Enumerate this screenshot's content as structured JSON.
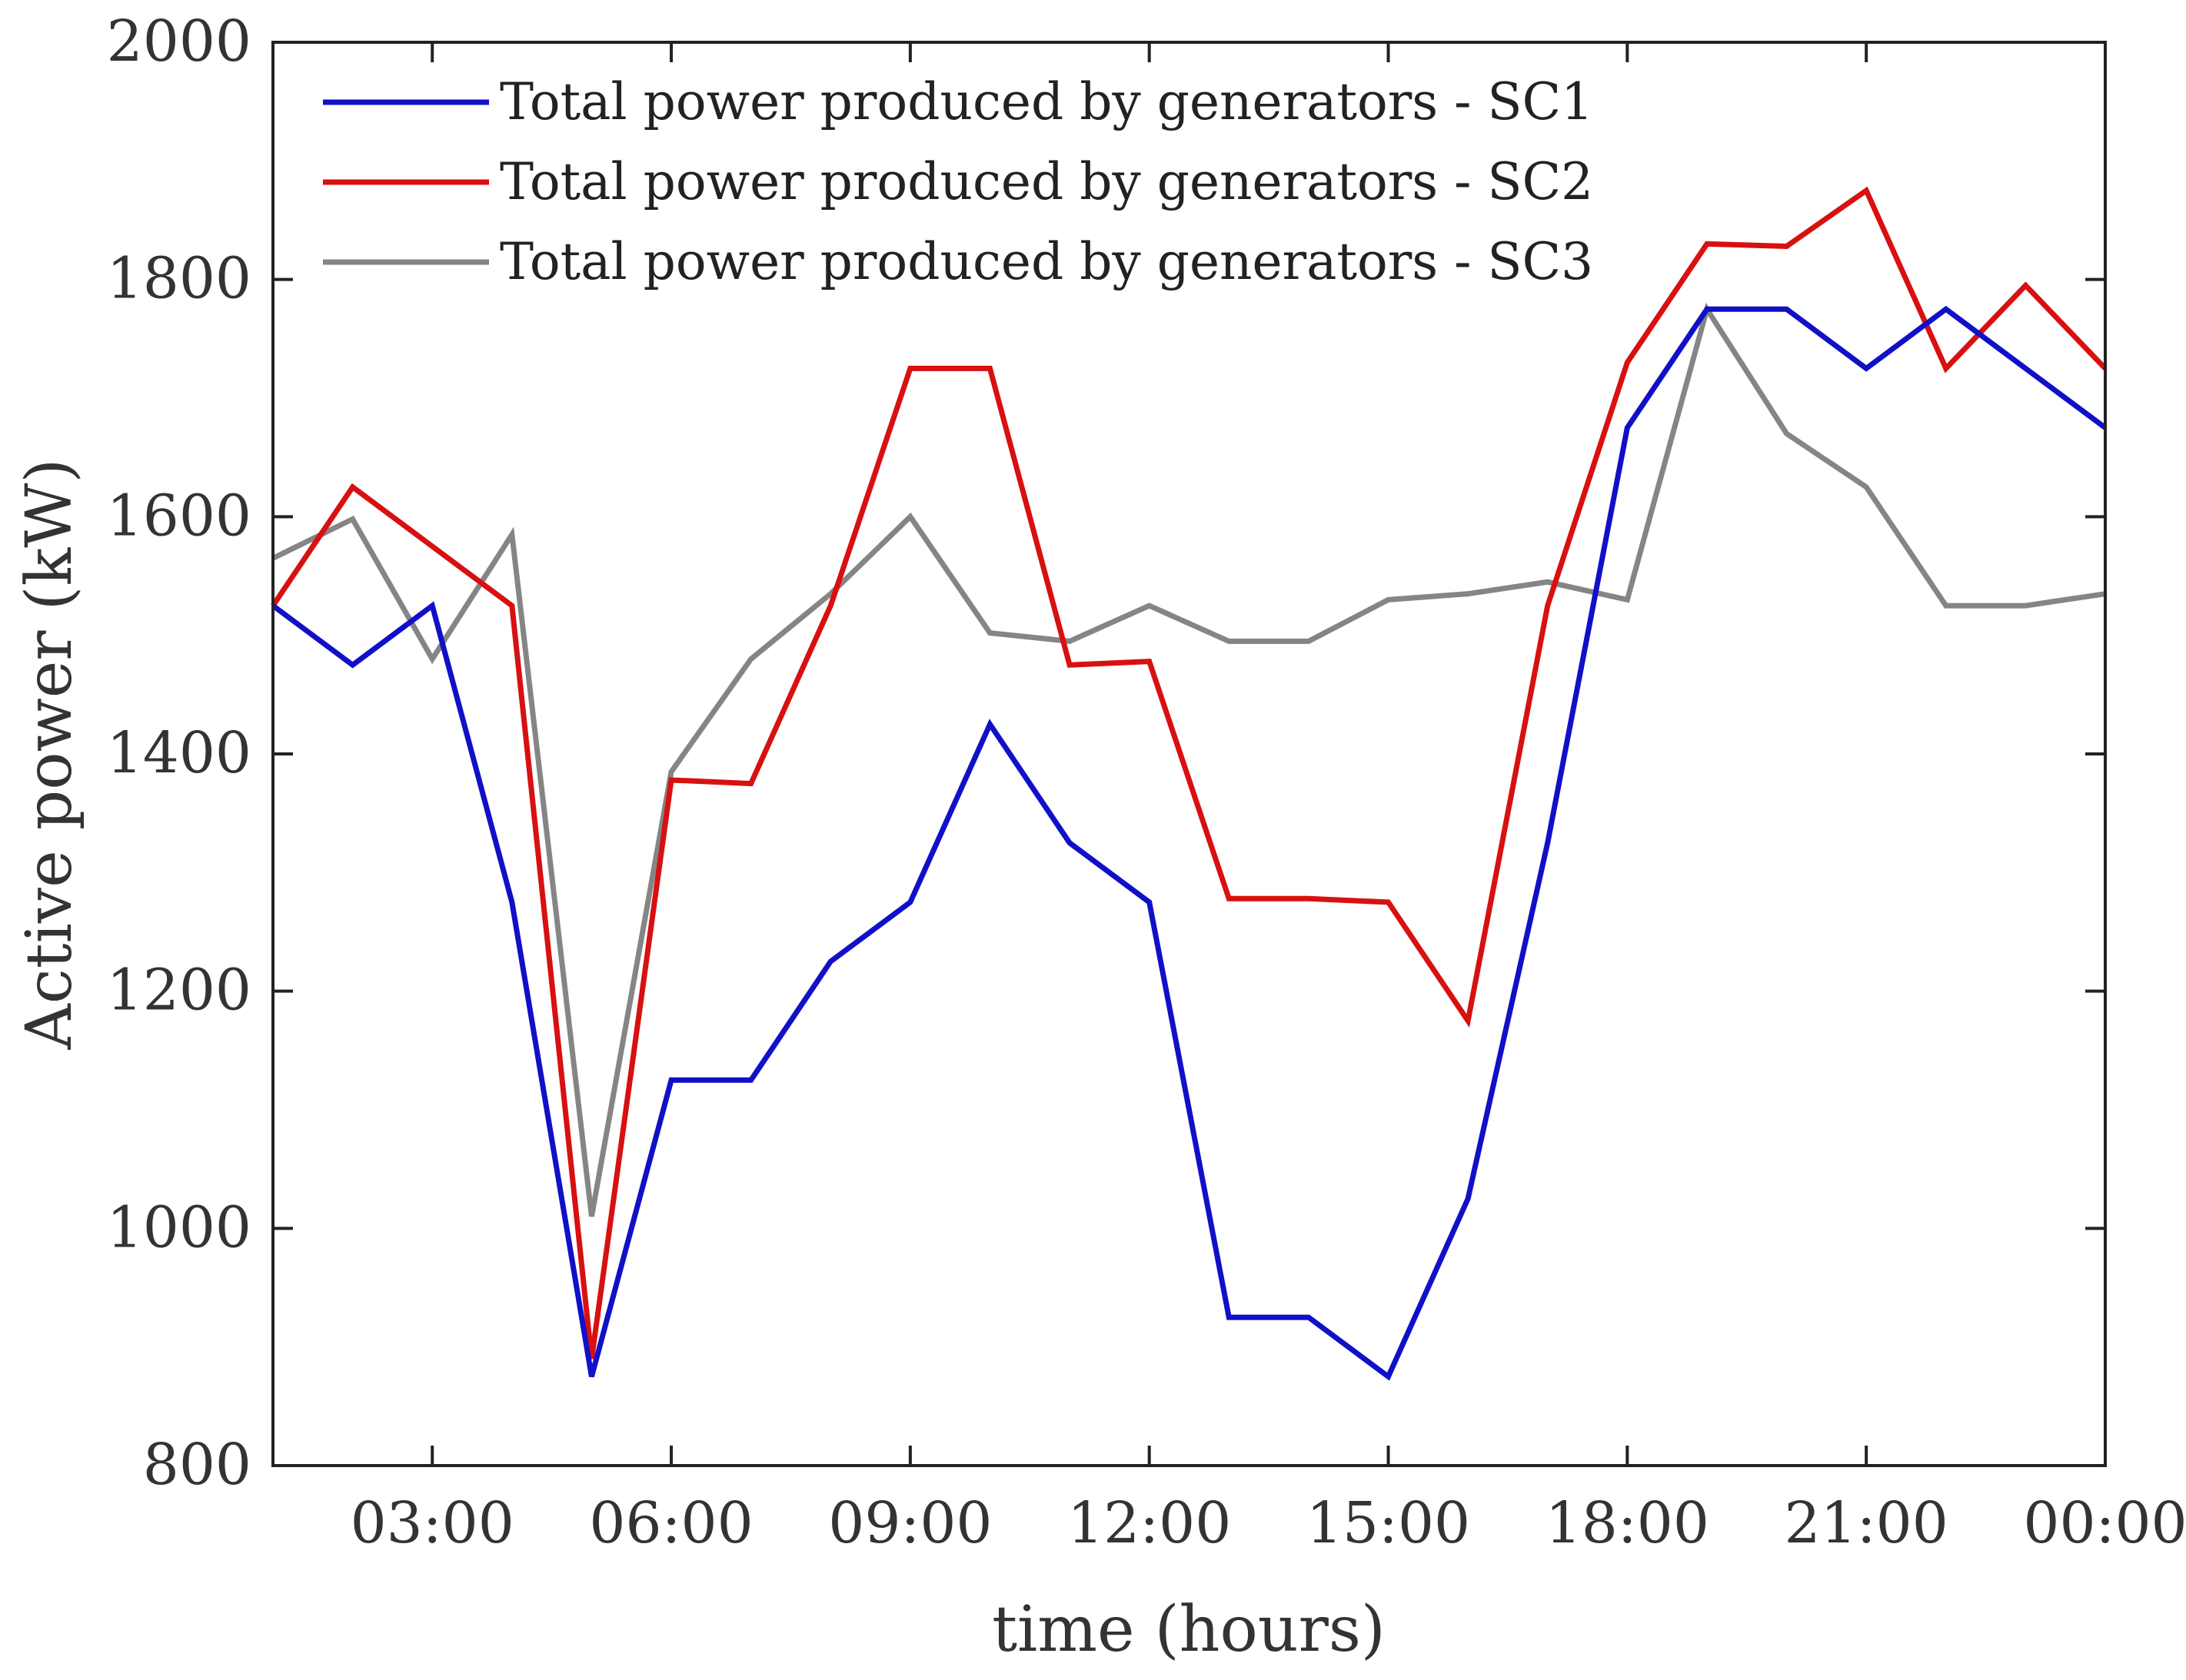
{
  "chart_data": {
    "type": "line",
    "title": "",
    "xlabel": "time (hours)",
    "ylabel": "Active power (kW)",
    "x": [
      1,
      2,
      3,
      4,
      5,
      6,
      7,
      8,
      9,
      10,
      11,
      12,
      13,
      14,
      15,
      16,
      17,
      18,
      19,
      20,
      21,
      22,
      23,
      24
    ],
    "xlim": [
      1,
      24
    ],
    "ylim": [
      800,
      2000
    ],
    "xticks": [
      {
        "value": 3,
        "label": "03:00"
      },
      {
        "value": 6,
        "label": "06:00"
      },
      {
        "value": 9,
        "label": "09:00"
      },
      {
        "value": 12,
        "label": "12:00"
      },
      {
        "value": 15,
        "label": "15:00"
      },
      {
        "value": 18,
        "label": "18:00"
      },
      {
        "value": 21,
        "label": "21:00"
      },
      {
        "value": 24,
        "label": "00:00"
      }
    ],
    "yticks": [
      {
        "value": 800,
        "label": "800"
      },
      {
        "value": 1000,
        "label": "1000"
      },
      {
        "value": 1200,
        "label": "1200"
      },
      {
        "value": 1400,
        "label": "1400"
      },
      {
        "value": 1600,
        "label": "1600"
      },
      {
        "value": 1800,
        "label": "1800"
      },
      {
        "value": 2000,
        "label": "2000"
      }
    ],
    "grid": false,
    "legend_position": "top-left",
    "series": [
      {
        "name": "Total power produced by generators - SC1",
        "color": "#1010c8",
        "values": [
          1525,
          1475,
          1525,
          1275,
          875,
          1125,
          1125,
          1225,
          1275,
          1425,
          1325,
          1275,
          925,
          925,
          875,
          1025,
          1325,
          1675,
          1775,
          1775,
          1725,
          1775,
          1725,
          1675
        ]
      },
      {
        "name": "Total power produced by generators - SC2",
        "color": "#d81010",
        "values": [
          1525,
          1625,
          1575,
          1525,
          890,
          1378,
          1375,
          1525,
          1725,
          1725,
          1475,
          1478,
          1278,
          1278,
          1275,
          1175,
          1525,
          1730,
          1830,
          1828,
          1875,
          1725,
          1795,
          1725
        ]
      },
      {
        "name": "Total power produced by generators - SC3",
        "color": "#858585",
        "values": [
          1565,
          1598,
          1480,
          1585,
          1010,
          1385,
          1480,
          1535,
          1600,
          1502,
          1495,
          1525,
          1495,
          1495,
          1530,
          1535,
          1545,
          1530,
          1775,
          1670,
          1625,
          1525,
          1525,
          1535
        ]
      }
    ]
  }
}
